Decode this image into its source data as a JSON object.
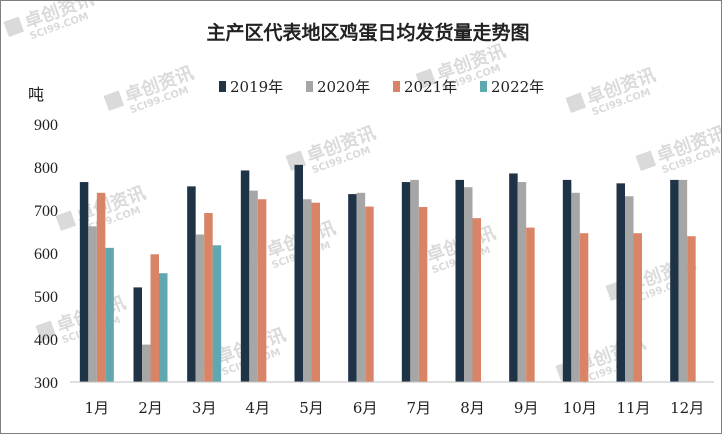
{
  "watermark": {
    "text": "卓创资讯",
    "subtext": "SCI99.COM",
    "color": "#d4d4d4"
  },
  "chart_data": {
    "type": "bar",
    "title": "主产区代表地区鸡蛋日均发货量走势图",
    "ylabel": "吨",
    "xlabel": "",
    "ylim": [
      300,
      900
    ],
    "yticks": [
      300,
      400,
      500,
      600,
      700,
      800,
      900
    ],
    "grid": false,
    "legend_position": "top",
    "categories": [
      "1月",
      "2月",
      "3月",
      "4月",
      "5月",
      "6月",
      "7月",
      "8月",
      "9月",
      "10月",
      "11月",
      "12月"
    ],
    "series": [
      {
        "name": "2019年",
        "color": "#1f3347",
        "values": [
          765,
          520,
          755,
          792,
          805,
          737,
          765,
          770,
          785,
          770,
          762,
          770
        ]
      },
      {
        "name": "2020年",
        "color": "#a6a6a6",
        "values": [
          662,
          387,
          643,
          745,
          725,
          740,
          770,
          753,
          765,
          740,
          732,
          770
        ]
      },
      {
        "name": "2021年",
        "color": "#d98466",
        "values": [
          740,
          597,
          693,
          725,
          717,
          708,
          707,
          681,
          659,
          646,
          646,
          639
        ]
      },
      {
        "name": "2022年",
        "color": "#5fa8b0",
        "values": [
          612,
          553,
          618,
          null,
          null,
          null,
          null,
          null,
          null,
          null,
          null,
          null
        ]
      }
    ]
  }
}
